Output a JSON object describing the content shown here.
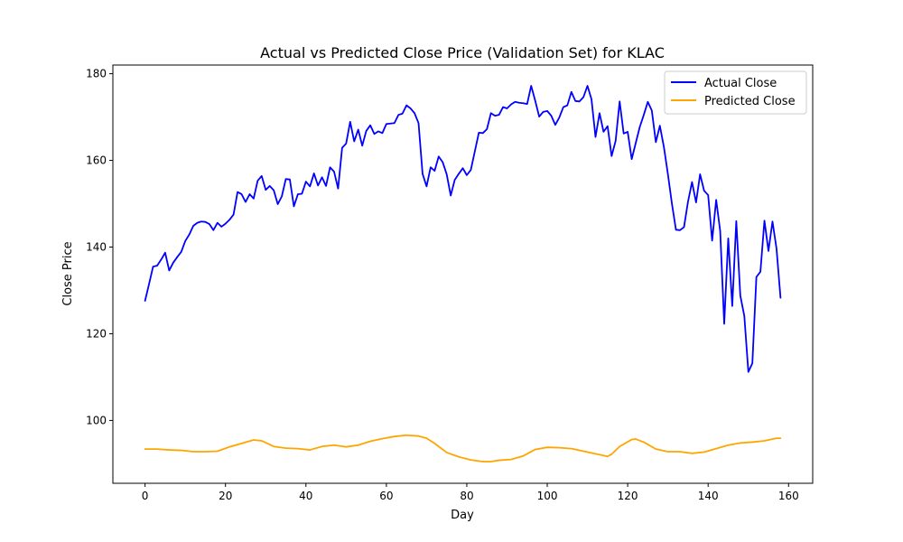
{
  "chart_data": {
    "type": "line",
    "title": "Actual vs Predicted Close Price (Validation Set) for KLAC",
    "xlabel": "Day",
    "ylabel": "Close Price",
    "xlim": [
      -8,
      166
    ],
    "ylim": [
      85.5,
      182
    ],
    "xticks": [
      0,
      20,
      40,
      60,
      80,
      100,
      120,
      140,
      160
    ],
    "yticks": [
      100,
      120,
      140,
      160,
      180
    ],
    "grid": false,
    "legend_position": "upper right",
    "series": [
      {
        "name": "Actual Close",
        "color": "#0000ff",
        "x": [
          0,
          1,
          2,
          3,
          4,
          5,
          6,
          7,
          8,
          9,
          10,
          11,
          12,
          13,
          14,
          15,
          16,
          17,
          18,
          19,
          20,
          21,
          22,
          23,
          24,
          25,
          26,
          27,
          28,
          29,
          30,
          31,
          32,
          33,
          34,
          35,
          36,
          37,
          38,
          39,
          40,
          41,
          42,
          43,
          44,
          45,
          46,
          47,
          48,
          49,
          50,
          51,
          52,
          53,
          54,
          55,
          56,
          57,
          58,
          59,
          60,
          61,
          62,
          63,
          64,
          65,
          66,
          67,
          68,
          69,
          70,
          71,
          72,
          73,
          74,
          75,
          76,
          77,
          78,
          79,
          80,
          81,
          82,
          83,
          84,
          85,
          86,
          87,
          88,
          89,
          90,
          91,
          92,
          93,
          94,
          95,
          96,
          97,
          98,
          99,
          100,
          101,
          102,
          103,
          104,
          105,
          106,
          107,
          108,
          109,
          110,
          111,
          112,
          113,
          114,
          115,
          116,
          117,
          118,
          119,
          120,
          121,
          122,
          123,
          124,
          125,
          126,
          127,
          128,
          129,
          130,
          131,
          132,
          133,
          134,
          135,
          136,
          137,
          138,
          139,
          140,
          141,
          142,
          143,
          144,
          145,
          146,
          147,
          148,
          149,
          150,
          151,
          152,
          153,
          154,
          155,
          156,
          157,
          158
        ],
        "values": [
          127.6,
          131.5,
          135.5,
          135.7,
          137.1,
          138.7,
          134.6,
          136.4,
          137.7,
          138.9,
          141.4,
          142.9,
          144.9,
          145.6,
          145.9,
          145.8,
          145.3,
          143.9,
          145.6,
          144.7,
          145.4,
          146.3,
          147.5,
          152.7,
          152.2,
          150.4,
          152.2,
          151.2,
          155.3,
          156.4,
          153.2,
          154.1,
          153.1,
          149.9,
          151.7,
          155.7,
          155.6,
          149.4,
          152.2,
          152.3,
          155.1,
          154.0,
          157.0,
          154.2,
          156.1,
          154.1,
          158.4,
          157.4,
          153.5,
          162.9,
          163.9,
          168.9,
          164.4,
          167.1,
          163.4,
          166.8,
          168.1,
          166.1,
          166.7,
          166.3,
          168.4,
          168.5,
          168.6,
          170.5,
          170.8,
          172.7,
          172.0,
          170.9,
          168.6,
          156.9,
          154.0,
          158.4,
          157.6,
          160.9,
          159.6,
          156.8,
          151.9,
          155.5,
          156.9,
          158.2,
          156.6,
          157.8,
          162.1,
          166.4,
          166.3,
          167.2,
          170.9,
          170.3,
          170.5,
          172.3,
          172.0,
          172.9,
          173.5,
          173.3,
          173.2,
          173.0,
          177.2,
          173.8,
          170.1,
          171.2,
          171.4,
          170.3,
          168.2,
          169.9,
          172.3,
          172.7,
          175.8,
          173.7,
          173.6,
          174.6,
          177.2,
          174.1,
          165.4,
          170.9,
          166.6,
          167.9,
          161.0,
          164.5,
          173.6,
          166.2,
          166.6,
          160.3,
          164.0,
          167.7,
          170.5,
          173.5,
          171.5,
          164.2,
          168.0,
          163.1,
          156.8,
          150.0,
          144.0,
          143.9,
          144.6,
          150.5,
          155.0,
          150.3,
          156.8,
          153.0,
          152.0,
          141.5,
          150.9,
          143.7,
          122.3,
          142.0,
          126.4,
          146.0,
          128.8,
          124.1,
          111.2,
          113.2,
          133.1,
          134.3,
          146.1,
          139.1,
          145.9,
          139.7,
          128.3
        ]
      },
      {
        "name": "Predicted Close",
        "color": "#ffa500",
        "x": [
          0,
          3,
          6,
          9,
          12,
          15,
          18,
          21,
          24,
          27,
          29,
          32,
          35,
          38,
          41,
          44,
          47,
          50,
          53,
          56,
          59,
          62,
          65,
          68,
          70,
          72,
          75,
          78,
          81,
          84,
          86,
          88,
          91,
          94,
          97,
          100,
          103,
          106,
          109,
          112,
          115,
          116,
          118,
          121,
          122,
          124,
          127,
          130,
          133,
          136,
          139,
          142,
          145,
          148,
          151,
          154,
          157,
          158
        ],
        "values": [
          93.4,
          93.4,
          93.2,
          93.1,
          92.8,
          92.8,
          92.9,
          93.9,
          94.7,
          95.5,
          95.3,
          94.0,
          93.6,
          93.5,
          93.2,
          94.0,
          94.3,
          93.9,
          94.3,
          95.2,
          95.8,
          96.3,
          96.6,
          96.4,
          95.9,
          94.7,
          92.6,
          91.6,
          90.9,
          90.5,
          90.5,
          90.8,
          91.0,
          91.8,
          93.3,
          93.8,
          93.7,
          93.5,
          92.9,
          92.3,
          91.7,
          92.2,
          94.0,
          95.6,
          95.7,
          95.0,
          93.4,
          92.8,
          92.8,
          92.4,
          92.7,
          93.5,
          94.3,
          94.8,
          95.0,
          95.3,
          95.9,
          95.9
        ]
      }
    ]
  }
}
